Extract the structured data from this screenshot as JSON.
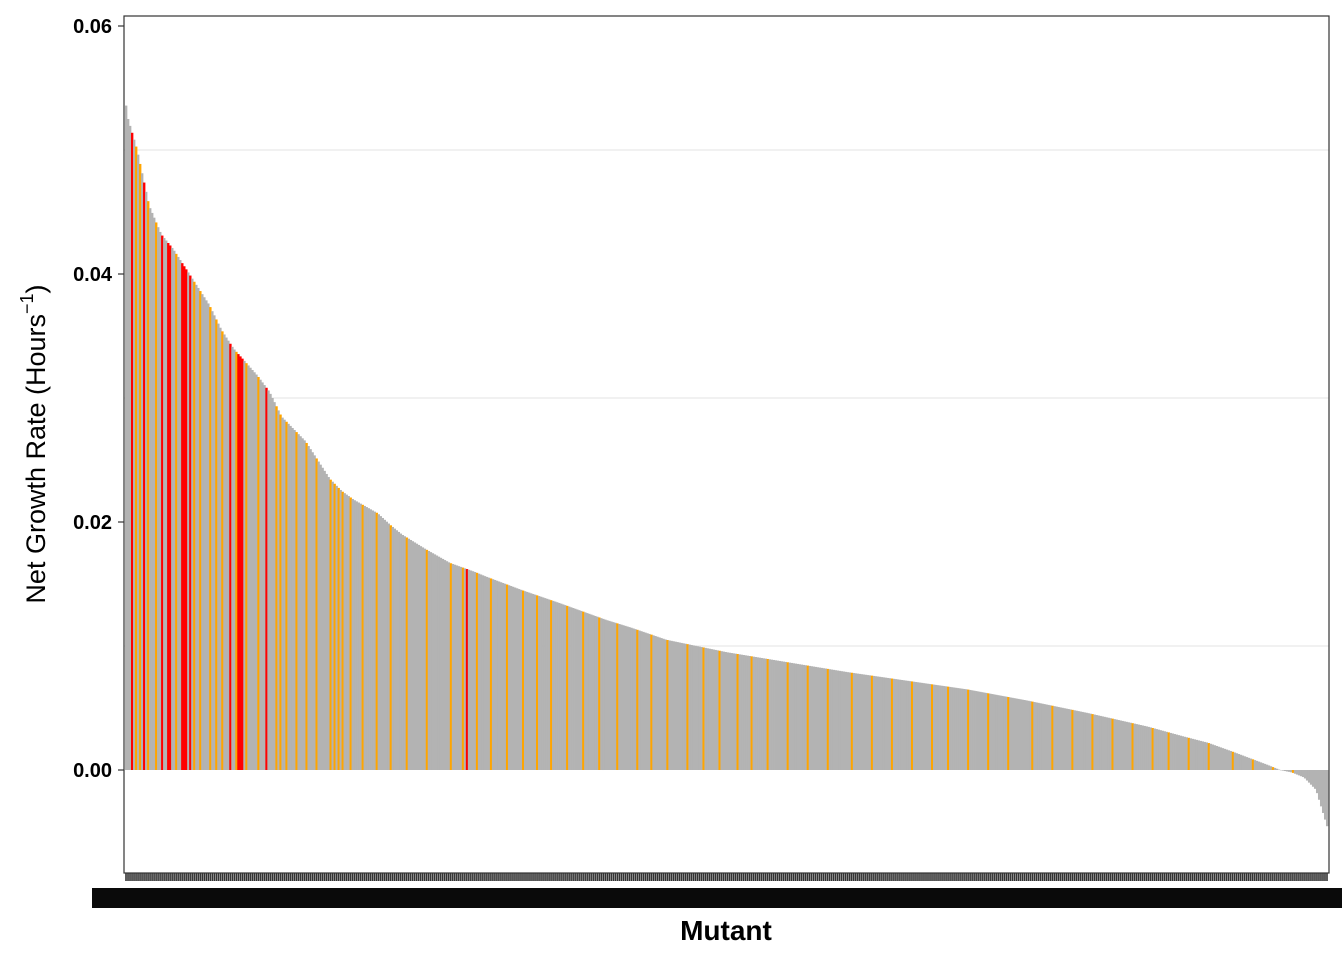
{
  "chart_data": {
    "type": "bar",
    "title": "",
    "xlabel": "Mutant",
    "ylabel": "Net Growth Rate (Hours",
    "ylabel_superscript": "−1",
    "ylabel_suffix": ")",
    "ylim": [
      -0.0165,
      0.061
    ],
    "yticks": [
      0.0,
      0.02,
      0.04,
      0.06
    ],
    "ytick_labels": [
      "0.00",
      "0.02",
      "0.04",
      "0.06"
    ],
    "grid": "horizontal minor only",
    "legend": "none",
    "n_bars": 600,
    "sorted": "descending",
    "colors": {
      "default": "#b3b3b3",
      "highlight_orange": "#ffa500",
      "highlight_red": "#ff0000"
    },
    "profile_x_fraction": [
      0.0,
      0.001,
      0.01,
      0.02,
      0.03,
      0.04,
      0.05,
      0.06,
      0.07,
      0.08,
      0.09,
      0.11,
      0.12,
      0.125,
      0.13,
      0.14,
      0.15,
      0.16,
      0.17,
      0.18,
      0.19,
      0.21,
      0.22,
      0.23,
      0.25,
      0.27,
      0.29,
      0.3,
      0.33,
      0.36,
      0.4,
      0.42,
      0.45,
      0.5,
      0.55,
      0.6,
      0.65,
      0.7,
      0.75,
      0.8,
      0.85,
      0.88,
      0.9,
      0.92,
      0.95,
      0.96,
      0.97,
      0.98,
      0.99,
      1.0
    ],
    "profile_values": [
      0.0565,
      0.053,
      0.05,
      0.0455,
      0.0432,
      0.042,
      0.0405,
      0.039,
      0.0375,
      0.0355,
      0.034,
      0.0318,
      0.0305,
      0.0295,
      0.0285,
      0.0275,
      0.0265,
      0.025,
      0.0235,
      0.0225,
      0.0218,
      0.0207,
      0.0198,
      0.019,
      0.0178,
      0.0167,
      0.016,
      0.0156,
      0.0145,
      0.0135,
      0.0121,
      0.0115,
      0.0105,
      0.0095,
      0.0087,
      0.0079,
      0.0072,
      0.0065,
      0.0056,
      0.0046,
      0.0035,
      0.0027,
      0.0022,
      0.0015,
      0.0004,
      0.0,
      -0.0002,
      -0.0006,
      -0.0016,
      -0.0048
    ],
    "red_bar_indices": [
      3,
      9,
      18,
      21,
      22,
      28,
      29,
      30,
      32,
      52,
      56,
      57,
      58,
      70,
      170
    ],
    "orange_bar_indices": [
      5,
      7,
      11,
      15,
      25,
      34,
      37,
      42,
      45,
      48,
      52,
      55,
      60,
      66,
      75,
      77,
      80,
      85,
      90,
      95,
      102,
      104,
      106,
      108,
      112,
      118,
      125,
      132,
      140,
      150,
      162,
      168,
      175,
      182,
      190,
      198,
      205,
      212,
      220,
      228,
      236,
      245,
      255,
      262,
      270,
      280,
      288,
      296,
      305,
      312,
      320,
      330,
      340,
      350,
      362,
      372,
      382,
      392,
      402,
      410,
      420,
      430,
      440,
      452,
      462,
      472,
      482,
      492,
      502,
      512,
      520,
      530,
      540,
      552,
      562,
      572,
      582
    ]
  }
}
